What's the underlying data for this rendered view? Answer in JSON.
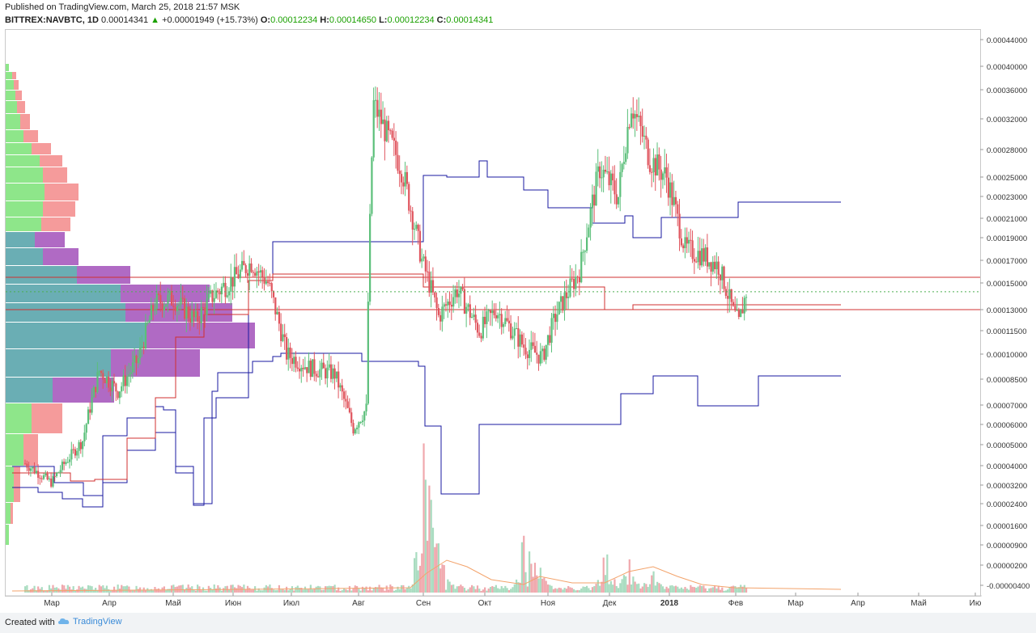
{
  "header": {
    "published": "Published on TradingView.com, March 25, 2018 21:57 MSK",
    "symbol": "BITTREX:NAVBTC, 1D",
    "last": "0.00014341",
    "change": "+0.00001949 (+15.73%)",
    "open_label": "O:",
    "open": "0.00012234",
    "high_label": "H:",
    "high": "0.00014650",
    "low_label": "L:",
    "low": "0.00012234",
    "close_label": "C:",
    "close": "0.00014341"
  },
  "footer": {
    "created_with": "Created with",
    "brand": "TradingView"
  },
  "colors": {
    "up": "#5bbf7a",
    "down": "#e0555e",
    "vol_up": "#a9dcc0",
    "vol_down": "#f0a8ad",
    "profile_green": "#8ee68a",
    "profile_red": "#f59b9b",
    "profile_teal": "#6aaeb4",
    "profile_purple": "#b06ac4",
    "channel": "#1a1aa0",
    "mid_channel": "#d03030",
    "volume_ma": "#f3a36b",
    "last_price": "#4caf50",
    "last_price_label_bg": "#4caf50"
  },
  "chart_data": {
    "type": "candlestick",
    "symbol": "BITTREX:NAVBTC",
    "interval": "1D",
    "last_price": 0.00014341,
    "y_ticks": [
      "0.00044000",
      "0.00040000",
      "0.00036000",
      "0.00032000",
      "0.00028000",
      "0.00025000",
      "0.00023000",
      "0.00021000",
      "0.00019000",
      "0.00017000",
      "0.00015000",
      "0.00013000",
      "0.00011500",
      "0.00010000",
      "0.00008500",
      "0.00007000",
      "0.00006000",
      "0.00005000",
      "0.00004000",
      "0.00003200",
      "0.00002400",
      "0.00001600",
      "0.00000900",
      "0.00000200",
      "-0.00000400"
    ],
    "x_ticks": [
      "Мар",
      "Апр",
      "Май",
      "Июн",
      "Июл",
      "Авг",
      "Сен",
      "Окт",
      "Ноя",
      "Дек",
      "2018",
      "Фев",
      "Мар",
      "Апр",
      "Май",
      "Ию"
    ],
    "price_path": [
      [
        "2017-03-01",
        4.1e-05
      ],
      [
        "2017-03-15",
        3.3e-05
      ],
      [
        "2017-04-01",
        5.2e-05
      ],
      [
        "2017-04-10",
        9e-05
      ],
      [
        "2017-04-20",
        7.8e-05
      ],
      [
        "2017-05-01",
        9.7e-05
      ],
      [
        "2017-05-10",
        0.000135
      ],
      [
        "2017-05-20",
        0.000138
      ],
      [
        "2017-06-01",
        0.000122
      ],
      [
        "2017-06-10",
        0.00014
      ],
      [
        "2017-06-20",
        0.000152
      ],
      [
        "2017-07-01",
        0.000168
      ],
      [
        "2017-07-10",
        0.00015
      ],
      [
        "2017-07-20",
        0.0001
      ],
      [
        "2017-08-01",
        9.2e-05
      ],
      [
        "2017-08-15",
        8.8e-05
      ],
      [
        "2017-08-25",
        5.8e-05
      ],
      [
        "2017-09-01",
        6.8e-05
      ],
      [
        "2017-09-05",
        0.00034
      ],
      [
        "2017-09-12",
        0.0003
      ],
      [
        "2017-09-20",
        0.00026
      ],
      [
        "2017-10-01",
        0.00017
      ],
      [
        "2017-10-10",
        0.000125
      ],
      [
        "2017-10-20",
        0.000145
      ],
      [
        "2017-11-01",
        0.000115
      ],
      [
        "2017-11-10",
        0.00013
      ],
      [
        "2017-11-25",
        0.000105
      ],
      [
        "2017-12-05",
        9.8e-05
      ],
      [
        "2017-12-12",
        0.000125
      ],
      [
        "2017-12-25",
        0.00016
      ],
      [
        "2018-01-05",
        0.00026
      ],
      [
        "2018-01-15",
        0.00023
      ],
      [
        "2018-01-22",
        0.00034
      ],
      [
        "2018-02-01",
        0.00027
      ],
      [
        "2018-02-10",
        0.00025
      ],
      [
        "2018-02-20",
        0.00018
      ],
      [
        "2018-03-01",
        0.000175
      ],
      [
        "2018-03-10",
        0.000165
      ],
      [
        "2018-03-18",
        0.000128
      ],
      [
        "2018-03-21",
        0.00012
      ],
      [
        "2018-03-25",
        0.00014341
      ]
    ],
    "horizontal_levels": [
      0.000155,
      0.00013
    ],
    "volume_profile": "left side, green/red upper rows and teal/purple lower rows",
    "volume_peak_months": [
      "Сен",
      "Дек"
    ]
  }
}
